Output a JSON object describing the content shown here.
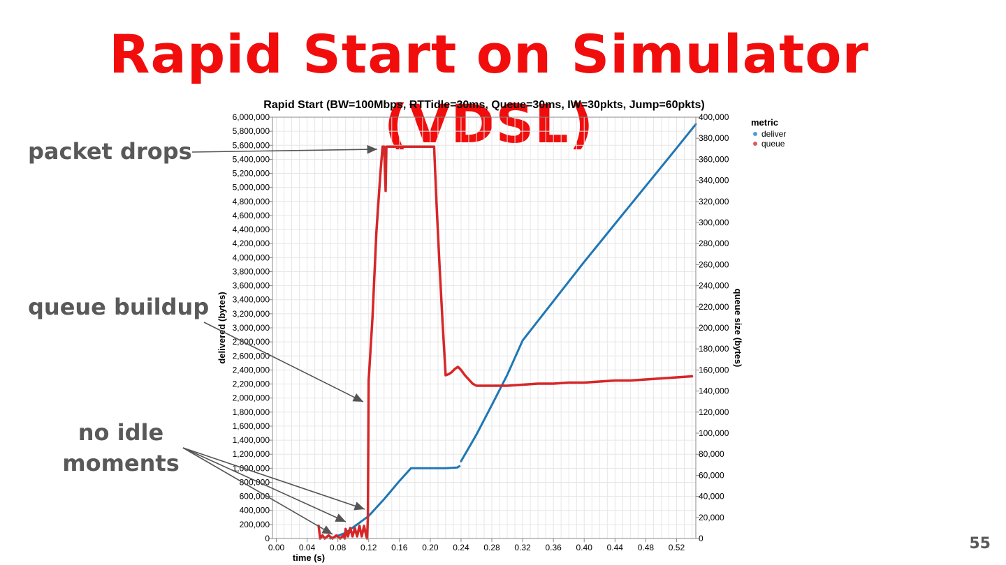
{
  "slide": {
    "title": "Rapid Start on Simulator (VDSL)",
    "page_number": "55",
    "colors": {
      "title": "#f20d0d",
      "annotation": "#595959"
    }
  },
  "annotations": {
    "packet_drops": "packet drops",
    "queue_buildup": "queue buildup",
    "no_idle_line1": "no idle",
    "no_idle_line2": "moments"
  },
  "chart_data": {
    "type": "line",
    "title": "Rapid Start (BW=100Mbps, RTTidle=30ms, Queue=30ms, IW=30pkts, Jump=60pkts)",
    "xlabel": "time (s)",
    "ylabel": "delivered (bytes)",
    "y2label": "queue size (bytes)",
    "xlim": [
      -0.005,
      0.545
    ],
    "ylim": [
      0,
      6000000
    ],
    "y2lim": [
      0,
      400000
    ],
    "x_ticks": [
      "0.00",
      "0.04",
      "0.08",
      "0.12",
      "0.16",
      "0.20",
      "0.24",
      "0.28",
      "0.32",
      "0.36",
      "0.40",
      "0.44",
      "0.48",
      "0.52"
    ],
    "x_tick_values": [
      0.0,
      0.04,
      0.08,
      0.12,
      0.16,
      0.2,
      0.24,
      0.28,
      0.32,
      0.36,
      0.4,
      0.44,
      0.48,
      0.52
    ],
    "y_ticks": [
      "0",
      "200,000",
      "400,000",
      "600,000",
      "800,000",
      "1,000,000",
      "1,200,000",
      "1,400,000",
      "1,600,000",
      "1,800,000",
      "2,000,000",
      "2,200,000",
      "2,400,000",
      "2,600,000",
      "2,800,000",
      "3,000,000",
      "3,200,000",
      "3,400,000",
      "3,600,000",
      "3,800,000",
      "4,000,000",
      "4,200,000",
      "4,400,000",
      "4,600,000",
      "4,800,000",
      "5,000,000",
      "5,200,000",
      "5,400,000",
      "5,600,000",
      "5,800,000",
      "6,000,000"
    ],
    "y2_ticks": [
      "0",
      "20,000",
      "40,000",
      "60,000",
      "80,000",
      "100,000",
      "120,000",
      "140,000",
      "160,000",
      "180,000",
      "200,000",
      "220,000",
      "240,000",
      "260,000",
      "280,000",
      "300,000",
      "320,000",
      "340,000",
      "360,000",
      "380,000",
      "400,000"
    ],
    "grid": true,
    "legend": {
      "title": "metric",
      "placement": "top-right"
    },
    "series": [
      {
        "name": "deliver",
        "axis": "left",
        "color": "#1f77b4",
        "x": [
          0.07,
          0.08,
          0.09,
          0.1,
          0.11,
          0.12,
          0.14,
          0.16,
          0.175,
          0.2,
          0.22,
          0.235,
          0.238
        ],
        "y": [
          0,
          40000,
          80000,
          160000,
          240000,
          320000,
          560000,
          820000,
          1000000,
          1000000,
          1000000,
          1010000,
          1030000
        ]
      },
      {
        "name": "deliver",
        "axis": "left",
        "color": "#1f77b4",
        "x": [
          0.24,
          0.26,
          0.28,
          0.3,
          0.32,
          0.36,
          0.4,
          0.44,
          0.48,
          0.52,
          0.545
        ],
        "y": [
          1100000,
          1480000,
          1900000,
          2330000,
          2820000,
          3380000,
          3940000,
          4480000,
          5020000,
          5560000,
          5900000
        ]
      },
      {
        "name": "queue",
        "axis": "right",
        "color": "#d62728",
        "x": [
          0.055,
          0.057,
          0.06,
          0.063,
          0.068,
          0.073,
          0.078,
          0.083,
          0.087,
          0.089,
          0.09,
          0.093,
          0.096,
          0.099,
          0.102,
          0.105,
          0.108,
          0.111,
          0.114,
          0.117,
          0.118,
          0.119,
          0.12,
          0.125,
          0.13,
          0.135,
          0.138,
          0.14,
          0.141,
          0.142,
          0.143,
          0.144,
          0.145,
          0.15,
          0.16,
          0.17,
          0.18,
          0.19,
          0.2,
          0.205,
          0.208,
          0.212,
          0.216,
          0.22,
          0.224,
          0.228,
          0.232,
          0.236,
          0.24,
          0.245,
          0.25,
          0.255,
          0.26,
          0.265,
          0.27,
          0.3,
          0.32,
          0.34,
          0.36,
          0.38,
          0.4,
          0.42,
          0.44,
          0.46,
          0.48,
          0.5,
          0.52,
          0.54
        ],
        "y": [
          12000,
          0,
          3000,
          0,
          3000,
          0,
          3000,
          0,
          3000,
          0,
          9000,
          2000,
          10000,
          2000,
          10000,
          2000,
          12000,
          2000,
          12000,
          2000,
          0,
          20000,
          150000,
          210000,
          290000,
          345000,
          372000,
          372000,
          350000,
          330000,
          372000,
          372000,
          372000,
          372000,
          372000,
          372000,
          372000,
          372000,
          372000,
          372000,
          320000,
          260000,
          205000,
          155000,
          156000,
          158000,
          161000,
          163000,
          160000,
          155000,
          151000,
          147000,
          145000,
          145000,
          145000,
          145000,
          146000,
          147000,
          147000,
          148000,
          148000,
          149000,
          150000,
          150000,
          151000,
          152000,
          153000,
          154000
        ]
      }
    ]
  }
}
